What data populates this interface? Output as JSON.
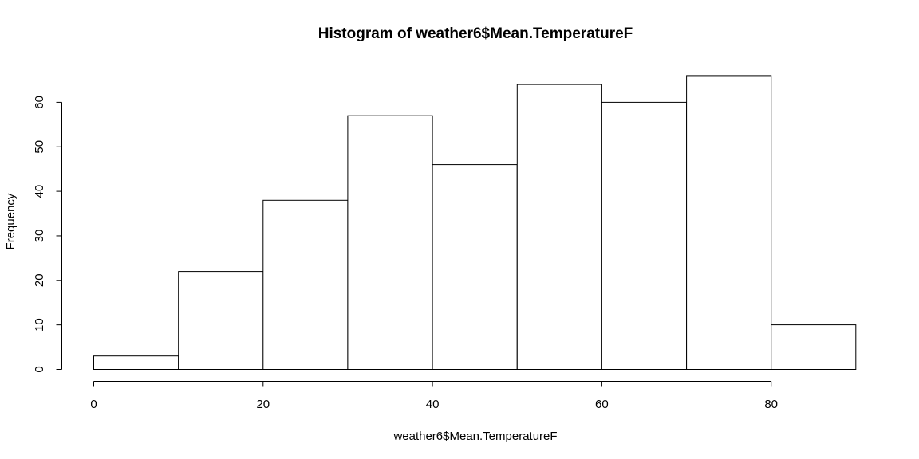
{
  "chart_data": {
    "type": "bar",
    "title": "Histogram of weather6$Mean.TemperatureF",
    "xlabel": "weather6$Mean.TemperatureF",
    "ylabel": "Frequency",
    "bins": [
      {
        "start": 0,
        "end": 10,
        "count": 3
      },
      {
        "start": 10,
        "end": 20,
        "count": 22
      },
      {
        "start": 20,
        "end": 30,
        "count": 38
      },
      {
        "start": 30,
        "end": 40,
        "count": 57
      },
      {
        "start": 40,
        "end": 50,
        "count": 46
      },
      {
        "start": 50,
        "end": 60,
        "count": 64
      },
      {
        "start": 60,
        "end": 70,
        "count": 60
      },
      {
        "start": 70,
        "end": 80,
        "count": 66
      },
      {
        "start": 80,
        "end": 90,
        "count": 10
      }
    ],
    "xticks": [
      0,
      20,
      40,
      60,
      80
    ],
    "yticks": [
      0,
      10,
      20,
      30,
      40,
      50,
      60
    ],
    "xlim": [
      0,
      90
    ],
    "ylim": [
      0,
      66
    ],
    "grid": false,
    "bar_fill": "#ffffff",
    "bar_stroke": "#000000"
  }
}
